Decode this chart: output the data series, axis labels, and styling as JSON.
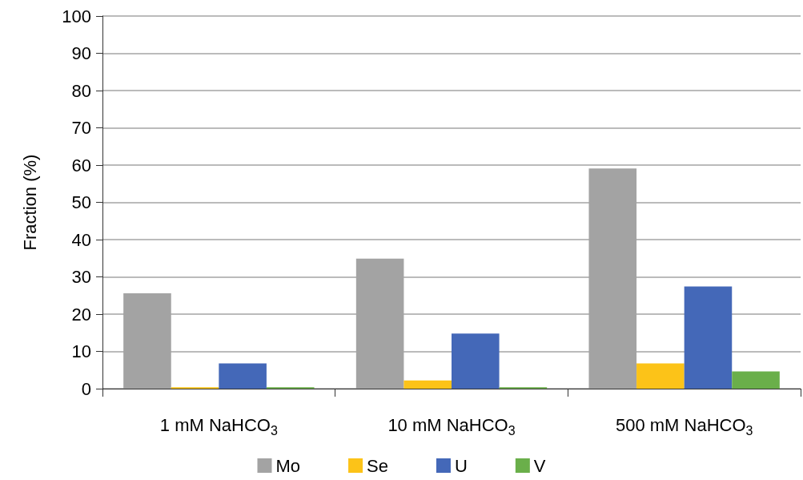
{
  "chart_data": {
    "type": "bar",
    "ylabel": "Fraction (%)",
    "categories": [
      "1 mM NaHCO$_{3}$",
      "10 mM NaHCO$_{3}$",
      "500 mM NaHCO$_{3}$"
    ],
    "series": [
      {
        "name": "Mo",
        "color": "#a3a3a3",
        "values": [
          25.6,
          34.9,
          59.1
        ]
      },
      {
        "name": "Se",
        "color": "#fcc318",
        "values": [
          0.4,
          2.2,
          6.8
        ]
      },
      {
        "name": "U",
        "color": "#4468b8",
        "values": [
          6.8,
          14.8,
          27.4
        ]
      },
      {
        "name": "V",
        "color": "#6aaf4a",
        "values": [
          0.4,
          0.4,
          4.6
        ]
      }
    ],
    "ylim": [
      0,
      100
    ],
    "yticks": [
      0,
      10,
      20,
      30,
      40,
      50,
      60,
      70,
      80,
      90,
      100
    ],
    "grid": "y",
    "legend": "bottom"
  }
}
